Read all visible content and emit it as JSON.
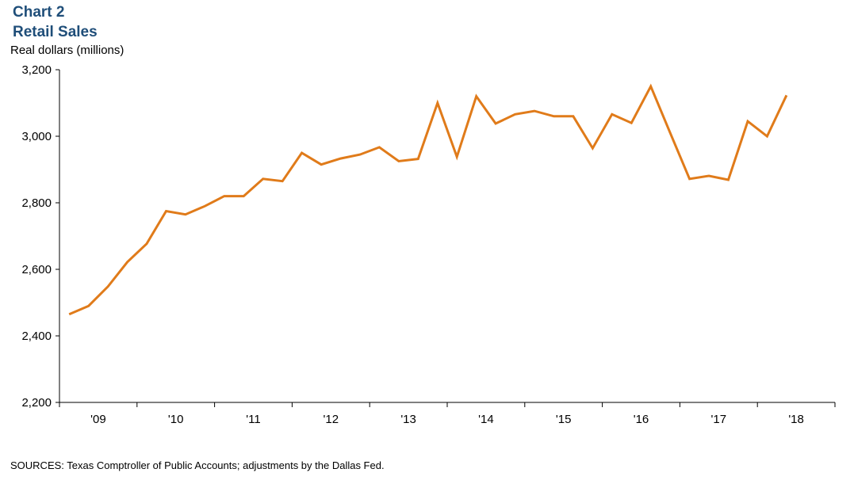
{
  "header": {
    "chart_number": "Chart 2",
    "title": "Retail Sales",
    "y_axis_label": "Real dollars  (millions)"
  },
  "footer": {
    "source": "SOURCES:  Texas Comptroller of Public Accounts; adjustments by the Dallas Fed."
  },
  "chart_data": {
    "type": "line",
    "title": "Retail Sales",
    "ylabel": "Real dollars (millions)",
    "xlabel": "",
    "ylim": [
      2200,
      3200
    ],
    "y_ticks": [
      2200,
      2400,
      2600,
      2800,
      3000,
      3200
    ],
    "y_tick_labels": [
      "2,200",
      "2,400",
      "2,600",
      "2,800",
      "3,000",
      "3,200"
    ],
    "x_tick_labels": [
      "'09",
      "'10",
      "'11",
      "'12",
      "'13",
      "'14",
      "'15",
      "'16",
      "'17",
      "'18"
    ],
    "grid": false,
    "legend": "none",
    "line_color": "#e07b1a",
    "series": [
      {
        "x": [
          "2009-Q1",
          "2009-Q2",
          "2009-Q3",
          "2009-Q4",
          "2010-Q1",
          "2010-Q2",
          "2010-Q3",
          "2010-Q4",
          "2011-Q1",
          "2011-Q2",
          "2011-Q3",
          "2011-Q4",
          "2012-Q1",
          "2012-Q2",
          "2012-Q3",
          "2012-Q4",
          "2013-Q1",
          "2013-Q2",
          "2013-Q3",
          "2013-Q4",
          "2014-Q1",
          "2014-Q2",
          "2014-Q3",
          "2014-Q4",
          "2015-Q1",
          "2015-Q2",
          "2015-Q3",
          "2015-Q4",
          "2016-Q1",
          "2016-Q2",
          "2016-Q3",
          "2016-Q4",
          "2017-Q1",
          "2017-Q2",
          "2017-Q3",
          "2017-Q4",
          "2018-Q1",
          "2018-Q2"
        ],
        "values": [
          2465,
          2490,
          2548,
          2622,
          2677,
          2775,
          2765,
          2790,
          2820,
          2820,
          2872,
          2865,
          2950,
          2915,
          2933,
          2945,
          2967,
          2925,
          2932,
          3100,
          2938,
          3120,
          3038,
          3066,
          3076,
          3060,
          3060,
          2964,
          3066,
          3040,
          3150,
          3010,
          2872,
          2881,
          2869,
          3045,
          3000,
          3123
        ]
      }
    ]
  }
}
